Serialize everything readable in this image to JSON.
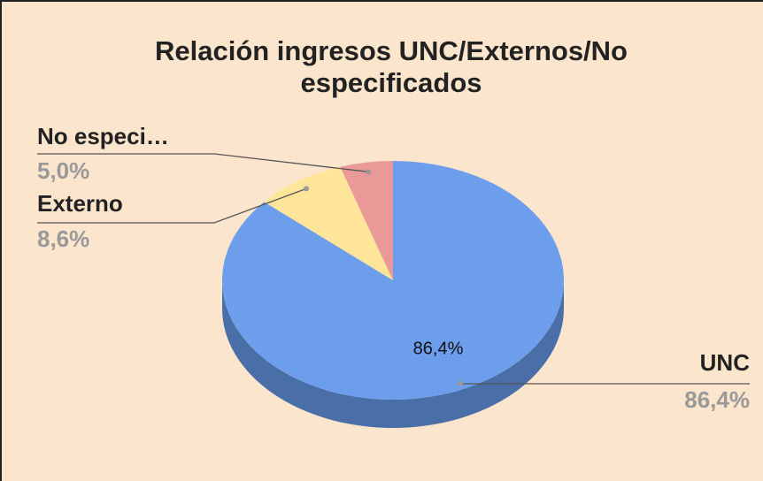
{
  "chart_data": {
    "type": "pie",
    "title": "Relación ingresos UNC/Externos/No especificados",
    "categories": [
      "UNC",
      "Externo",
      "No especi…"
    ],
    "values": [
      86.4,
      8.6,
      5.0
    ],
    "value_labels": [
      "86,4%",
      "8,6%",
      "5,0%"
    ],
    "colors": [
      "#6d9eeb",
      "#ffe599",
      "#ea9999"
    ],
    "side_colors": [
      "#4a6fa8",
      "#b3a06b",
      "#a46b6b"
    ],
    "three_d": true
  }
}
